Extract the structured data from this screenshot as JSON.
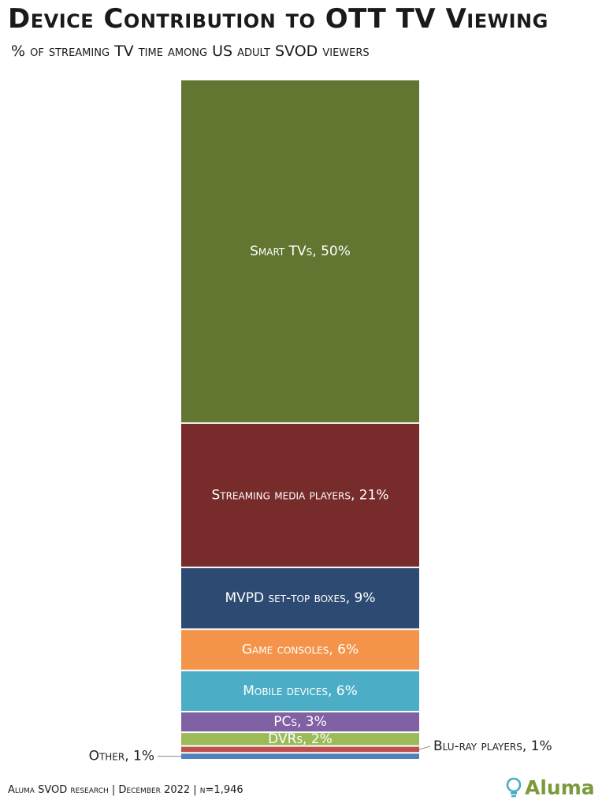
{
  "title": "Device Contribution to OTT TV Viewing",
  "subtitle": "% of streaming TV time among US adult SVOD viewers",
  "source": "Aluma SVOD research | December 2022 | n=1,946",
  "logo_text": "Aluma",
  "chart_data": {
    "type": "bar",
    "stacked": true,
    "title": "Device Contribution to OTT TV Viewing",
    "subtitle": "% of streaming TV time among US adult SVOD viewers",
    "categories": [
      "Smart TVs",
      "Streaming media players",
      "MVPD set-top boxes",
      "Game consoles",
      "Mobile devices",
      "PCs",
      "DVRs",
      "Blu-ray players",
      "Other"
    ],
    "values": [
      50,
      21,
      9,
      6,
      6,
      3,
      2,
      1,
      1
    ],
    "labels": [
      "Smart TVs, 50%",
      "Streaming media players, 21%",
      "MVPD set-top boxes, 9%",
      "Game consoles, 6%",
      "Mobile devices, 6%",
      "PCs, 3%",
      "DVRs, 2%",
      "Blu-ray players, 1%",
      "Other, 1%"
    ],
    "colors": [
      "#627531",
      "#772b2b",
      "#2d4b72",
      "#f4944a",
      "#4badc6",
      "#8061a3",
      "#9bbb59",
      "#c0504d",
      "#4f81bd"
    ],
    "label_position": [
      "inside",
      "inside",
      "inside",
      "inside",
      "inside",
      "inside",
      "inside",
      "outside-right",
      "outside-left"
    ],
    "grid": false,
    "legend": "none"
  }
}
